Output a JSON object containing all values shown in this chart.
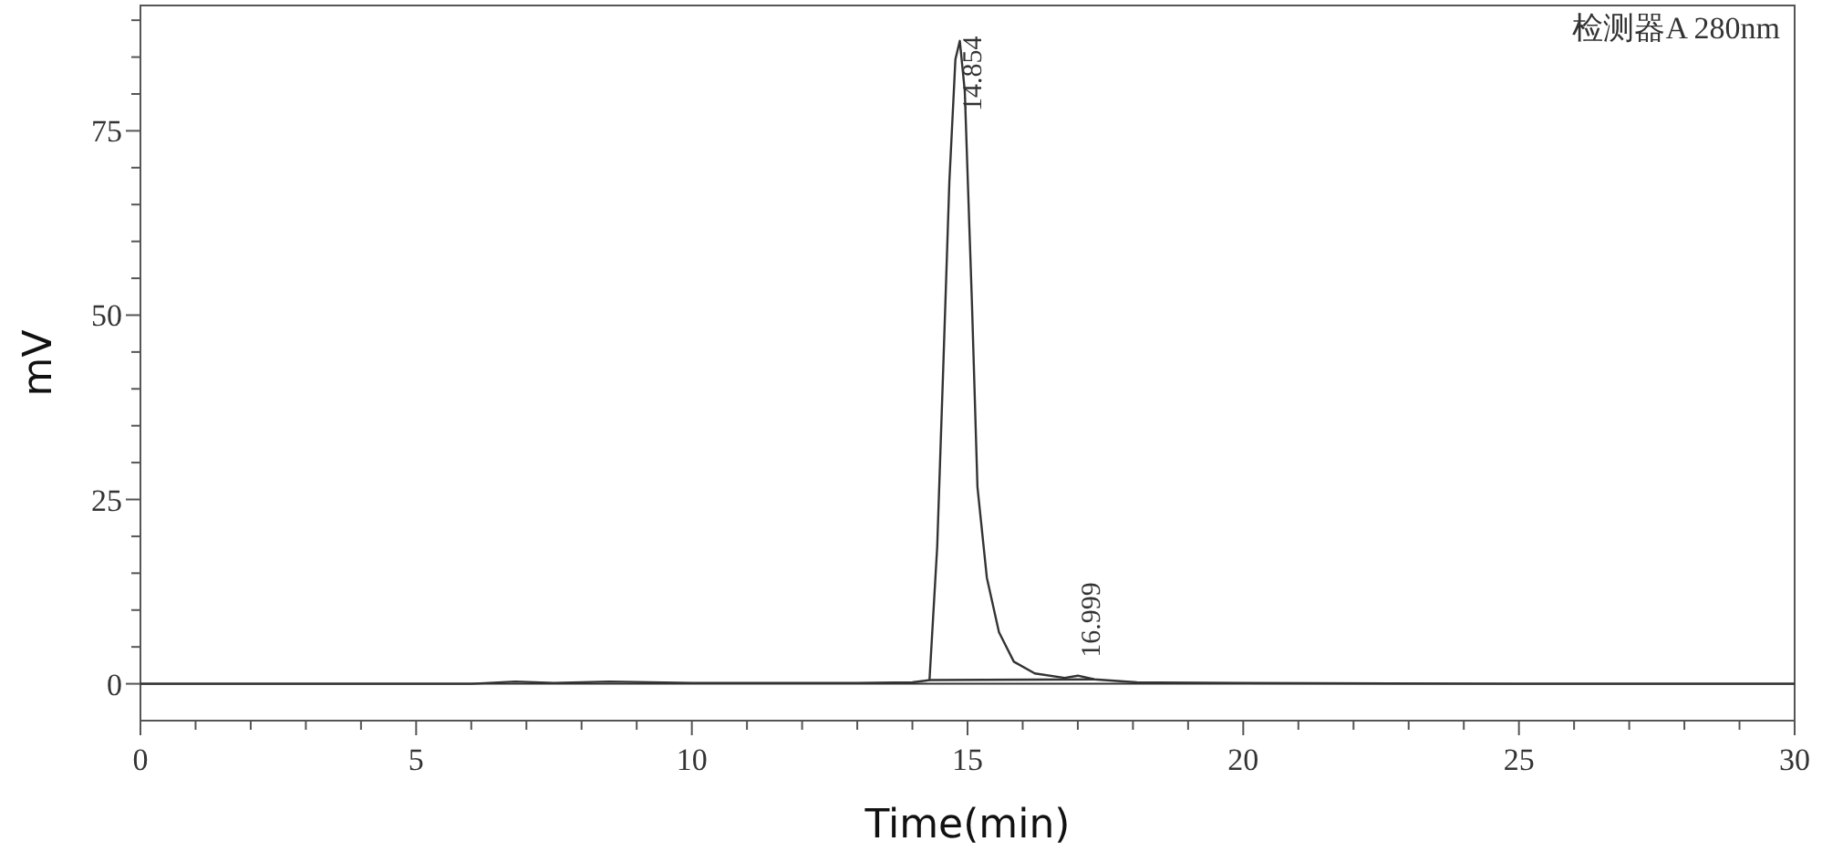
{
  "chart_data": {
    "type": "line",
    "xlabel": "Time(min)",
    "ylabel": "mV",
    "xlim": [
      0,
      30
    ],
    "ylim": [
      -5,
      92
    ],
    "xticks": [
      0,
      {
        "value": 1,
        "label": null
      },
      {
        "value": 2,
        "label": null
      },
      {
        "value": 3,
        "label": null
      },
      {
        "value": 4,
        "label": null
      },
      5,
      {
        "value": 6,
        "label": null
      },
      {
        "value": 7,
        "label": null
      },
      {
        "value": 8,
        "label": null
      },
      {
        "value": 9,
        "label": null
      },
      10,
      {
        "value": 11,
        "label": null
      },
      {
        "value": 12,
        "label": null
      },
      {
        "value": 13,
        "label": null
      },
      {
        "value": 14,
        "label": null
      },
      15,
      {
        "value": 16,
        "label": null
      },
      {
        "value": 17,
        "label": null
      },
      {
        "value": 18,
        "label": null
      },
      {
        "value": 19,
        "label": null
      },
      20,
      {
        "value": 21,
        "label": null
      },
      {
        "value": 22,
        "label": null
      },
      {
        "value": 23,
        "label": null
      },
      {
        "value": 24,
        "label": null
      },
      25,
      {
        "value": 26,
        "label": null
      },
      {
        "value": 27,
        "label": null
      },
      {
        "value": 28,
        "label": null
      },
      {
        "value": 29,
        "label": null
      },
      30
    ],
    "yticks": [
      0,
      {
        "value": 5,
        "label": null
      },
      {
        "value": 10,
        "label": null
      },
      {
        "value": 15,
        "label": null
      },
      {
        "value": 20,
        "label": null
      },
      25,
      {
        "value": 30,
        "label": null
      },
      {
        "value": 35,
        "label": null
      },
      {
        "value": 40,
        "label": null
      },
      {
        "value": 45,
        "label": null
      },
      50,
      {
        "value": 55,
        "label": null
      },
      {
        "value": 60,
        "label": null
      },
      {
        "value": 65,
        "label": null
      },
      {
        "value": 70,
        "label": null
      },
      75,
      {
        "value": 80,
        "label": null
      },
      {
        "value": 85,
        "label": null
      },
      {
        "value": 90,
        "label": null
      }
    ],
    "grid": false,
    "marker": "none",
    "line_style": "solid",
    "ref_lines": [
      {
        "axis": "y",
        "value": 0,
        "color": "#333333"
      }
    ],
    "series": [
      {
        "color": "#333333",
        "x": [
          0,
          3,
          6,
          6.8,
          7.5,
          8.5,
          10,
          12,
          13,
          14,
          14.31,
          14.45,
          14.56,
          14.67,
          14.78,
          14.86,
          14.95,
          15.08,
          15.18,
          15.35,
          15.57,
          15.84,
          16.22,
          16.76,
          17.0,
          17.3,
          18.07,
          20,
          25,
          30
        ],
        "values": [
          0,
          0,
          0,
          0.3,
          0.1,
          0.3,
          0.1,
          0.1,
          0.1,
          0.2,
          0.5,
          18.6,
          43,
          68,
          84.7,
          87.2,
          80.4,
          51.6,
          26.7,
          14.4,
          7,
          3,
          1.4,
          0.8,
          1.1,
          0.6,
          0.2,
          0.1,
          0,
          0
        ]
      },
      {
        "color": "#333333",
        "x": [
          14.31,
          17.3
        ],
        "values": [
          0.5,
          0.6
        ]
      }
    ],
    "annotations": [
      "检测器A 280nm",
      {
        "text": "14.854",
        "x": 14.854,
        "y": 87.2
      },
      {
        "text": "16.999",
        "x": 16.999,
        "y": 1.1
      }
    ]
  }
}
